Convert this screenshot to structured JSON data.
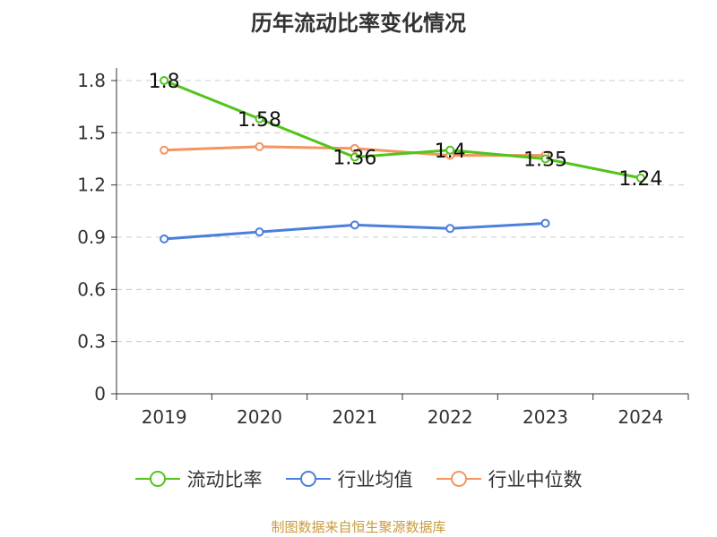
{
  "chart_data": {
    "type": "line",
    "title": "历年流动比率变化情况",
    "categories": [
      "2019",
      "2020",
      "2021",
      "2022",
      "2023",
      "2024"
    ],
    "y_ticks": [
      "0",
      "0.3",
      "0.6",
      "0.9",
      "1.2",
      "1.5",
      "1.8"
    ],
    "ylim": [
      0,
      1.8
    ],
    "grid": true,
    "legend_position": "bottom",
    "series": [
      {
        "name": "流动比率",
        "color": "#52c41a",
        "values": [
          1.8,
          1.58,
          1.36,
          1.4,
          1.35,
          1.24
        ],
        "labels": [
          "1.8",
          "1.58",
          "1.36",
          "1.4",
          "1.35",
          "1.24"
        ]
      },
      {
        "name": "行业均值",
        "color": "#4a7fdc",
        "values": [
          0.89,
          0.93,
          0.97,
          0.95,
          0.98,
          null
        ]
      },
      {
        "name": "行业中位数",
        "color": "#f4945f",
        "values": [
          1.4,
          1.42,
          1.41,
          1.37,
          1.37,
          null
        ]
      }
    ]
  },
  "source_text": "制图数据来自恒生聚源数据库"
}
